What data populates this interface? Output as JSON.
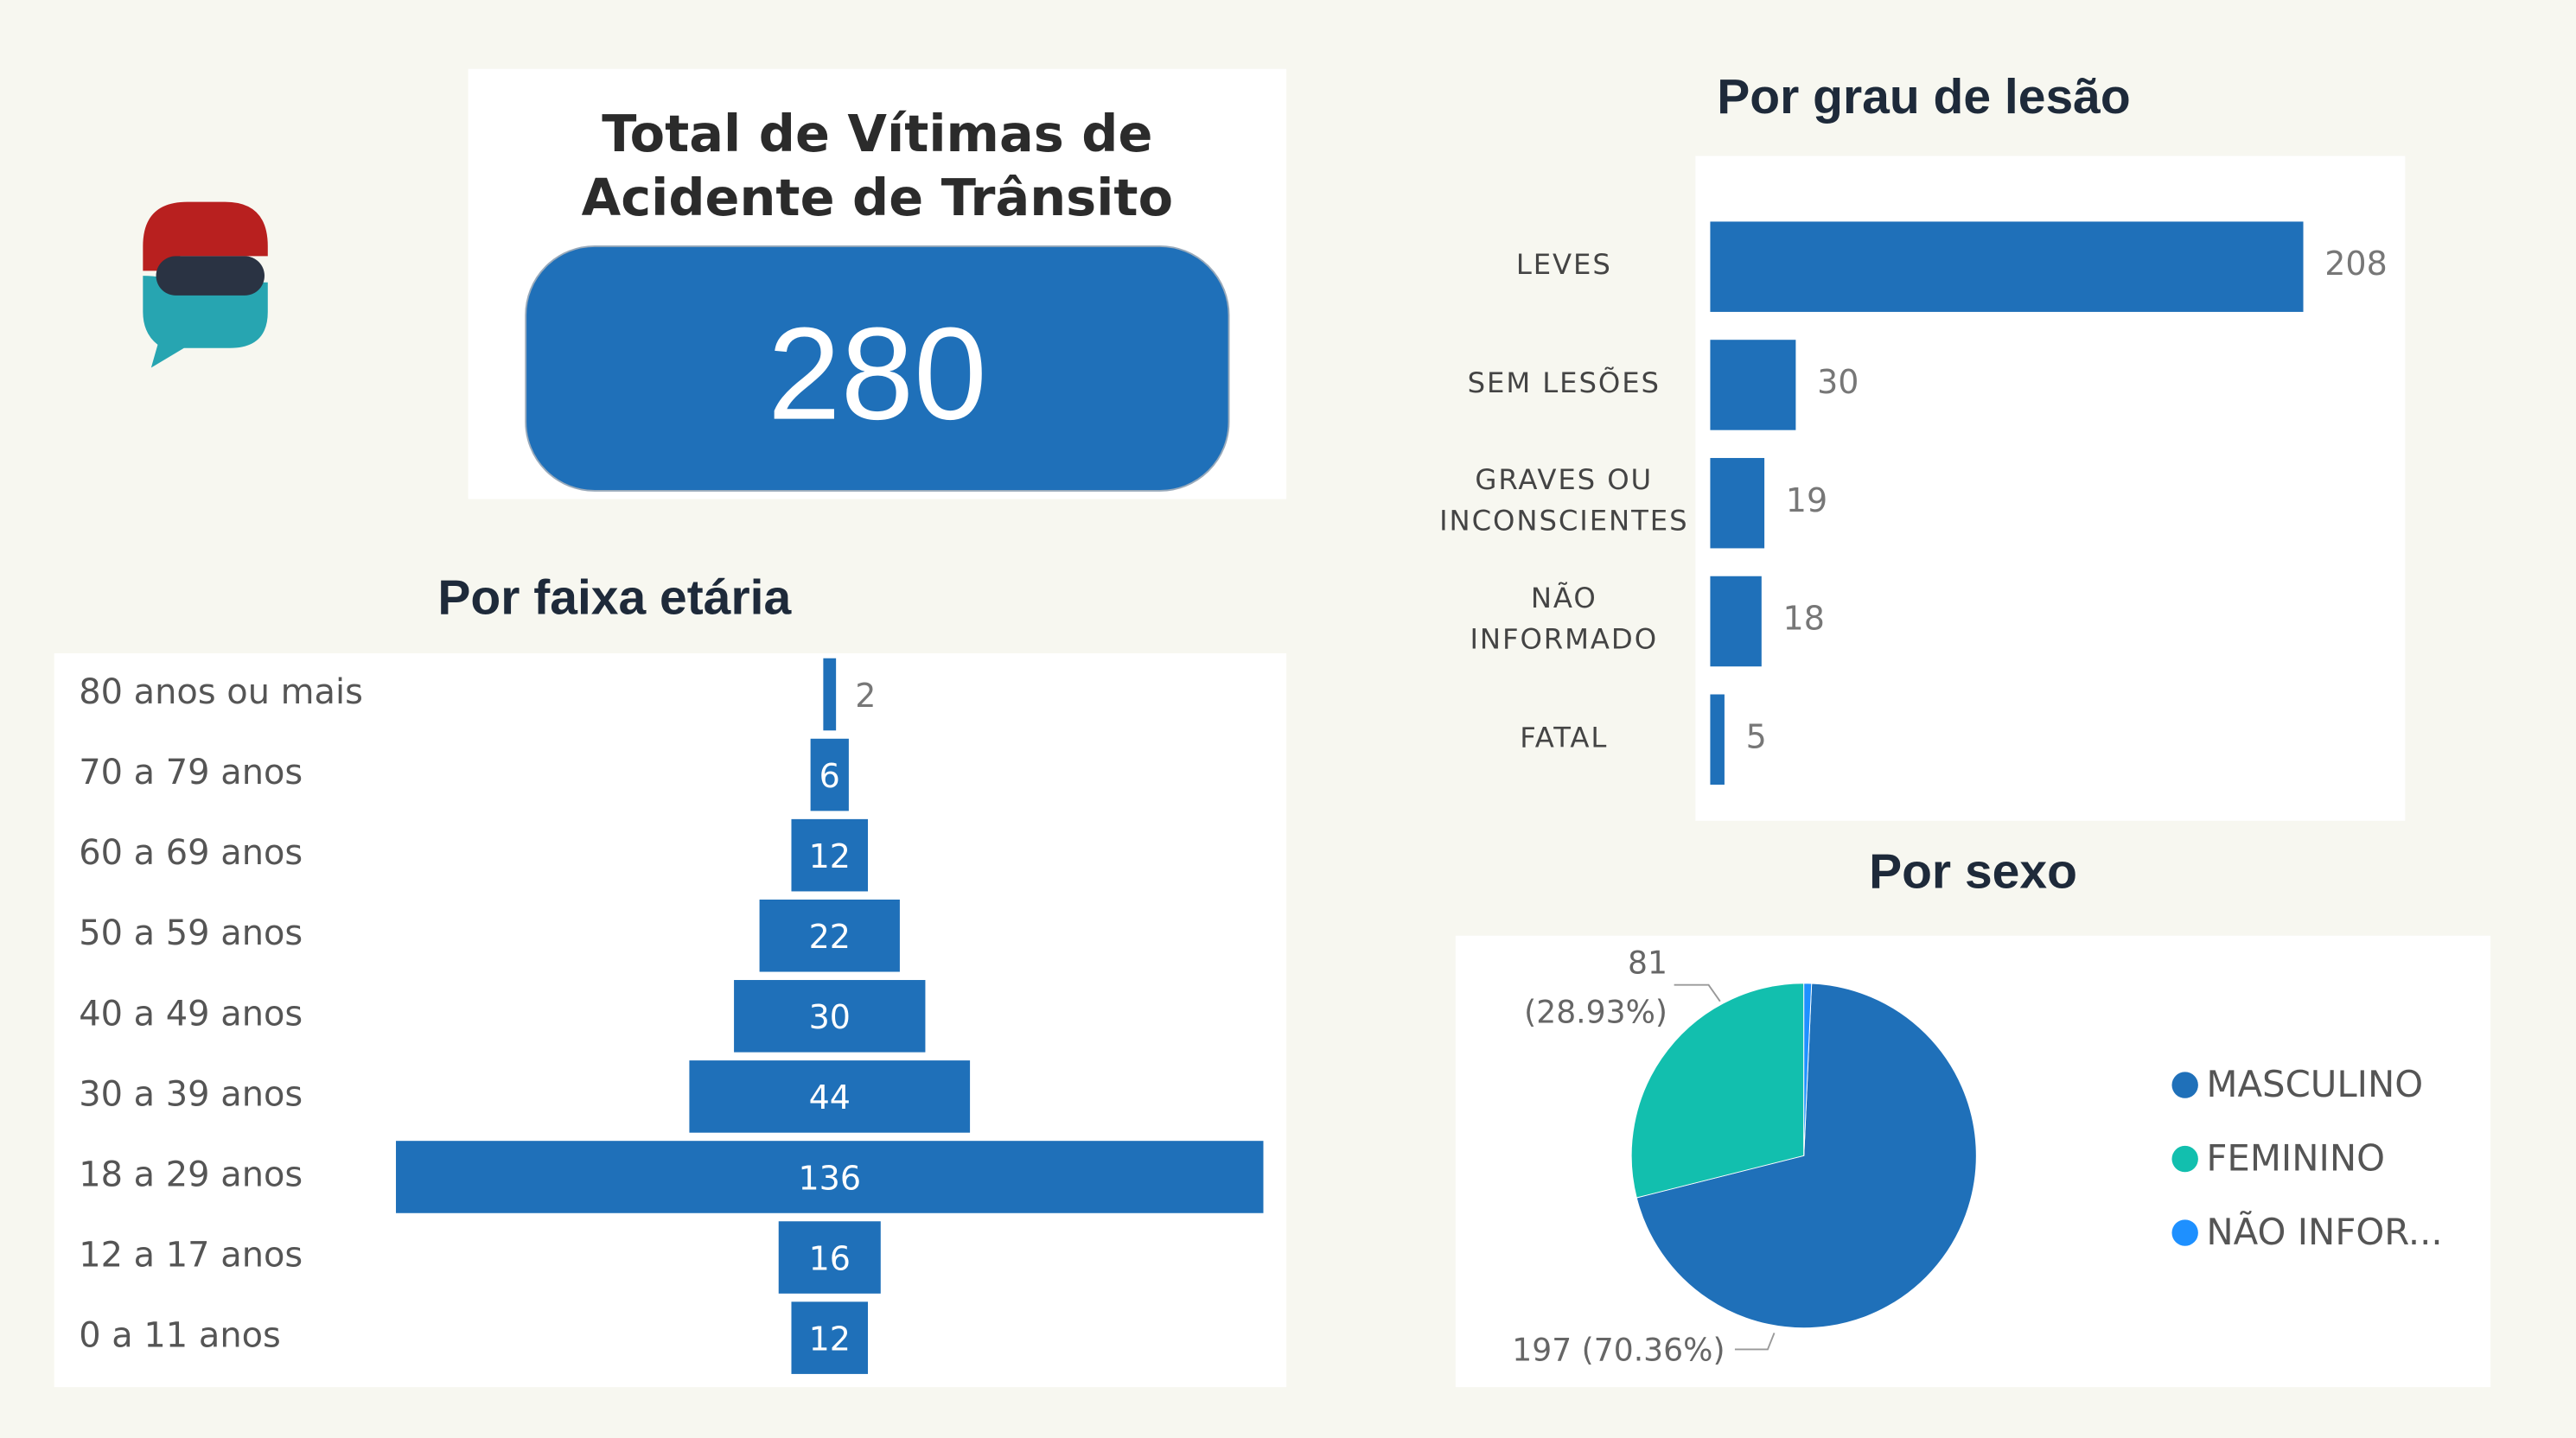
{
  "chart_data": [
    {
      "type": "kpi",
      "title": "Total de Vítimas de Acidente de Trânsito",
      "value": 280,
      "color": "#1f70b9"
    },
    {
      "type": "funnel",
      "title": "Por faixa etária",
      "categories": [
        "80 anos ou mais",
        "70 a 79 anos",
        "60 a 69 anos",
        "50 a 59 anos",
        "40 a 49 anos",
        "30 a 39 anos",
        "18 a 29 anos",
        "12 a 17 anos",
        "0 a 11 anos"
      ],
      "values": [
        2,
        6,
        12,
        22,
        30,
        44,
        136,
        16,
        12
      ],
      "color": "#1f70b9"
    },
    {
      "type": "bar",
      "title": "Por grau de lesão",
      "categories": [
        "LEVES",
        "SEM LESÕES",
        "GRAVES OU INCONSCIENTES",
        "NÃO INFORMADO",
        "FATAL"
      ],
      "values": [
        208,
        30,
        19,
        18,
        5
      ],
      "color": "#1f70b9"
    },
    {
      "type": "pie",
      "title": "Por sexo",
      "categories": [
        "MASCULINO",
        "FEMININO",
        "NÃO INFOR..."
      ],
      "values": [
        197,
        81,
        2
      ],
      "value_labels": [
        "197 (70.36%)",
        "81 (28.93%)",
        null
      ],
      "colors": [
        "#1f70b9",
        "#12bfae",
        "#1e90ff"
      ]
    }
  ]
}
